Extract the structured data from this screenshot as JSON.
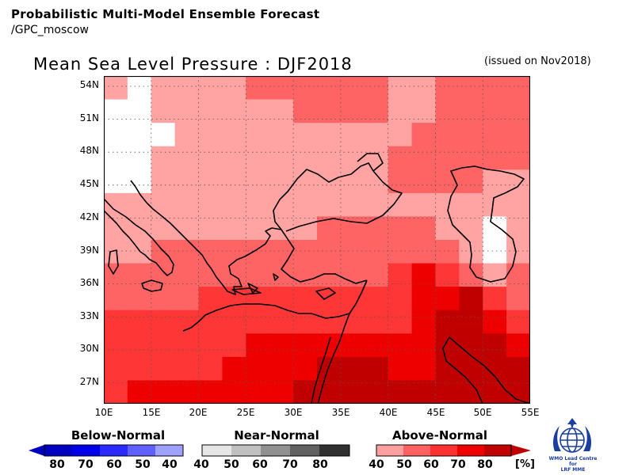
{
  "header": {
    "title": "Probabilistic Multi-Model Ensemble Forecast",
    "source": "/GPC_moscow"
  },
  "map": {
    "title": "Mean Sea Level Pressure : DJF2018",
    "issued": "(issued on Nov2018)",
    "lat_labels": [
      "54N",
      "51N",
      "48N",
      "45N",
      "42N",
      "39N",
      "36N",
      "33N",
      "30N",
      "27N"
    ],
    "lon_labels": [
      "10E",
      "15E",
      "20E",
      "25E",
      "30E",
      "35E",
      "40E",
      "45E",
      "50E",
      "55E"
    ]
  },
  "legend": {
    "below": {
      "label": "Below-Normal",
      "ticks": [
        "80",
        "70",
        "60",
        "50",
        "40"
      ],
      "colors": [
        "#0000c0",
        "#0000e8",
        "#2a2aff",
        "#6060ff",
        "#a0a0ff"
      ]
    },
    "near": {
      "label": "Near-Normal",
      "ticks": [
        "40",
        "50",
        "60",
        "70",
        "80"
      ],
      "colors": [
        "#e6e6e6",
        "#c0c0c0",
        "#909090",
        "#606060",
        "#303030"
      ]
    },
    "above": {
      "label": "Above-Normal",
      "ticks": [
        "40",
        "50",
        "60",
        "70",
        "80"
      ],
      "colors": [
        "#ffa0a0",
        "#ff6060",
        "#ff3030",
        "#ee0000",
        "#c00000"
      ]
    },
    "unit": "[%]"
  },
  "colors": {
    "a40": "#ffa3a3",
    "a50": "#ff6464",
    "a60": "#ff3636",
    "a70": "#ee0000",
    "a80": "#c00000",
    "white": "#ffffff"
  },
  "logo": {
    "caption_line1": "WMO Lead Centre for",
    "caption_line2": "LRF MME"
  }
}
